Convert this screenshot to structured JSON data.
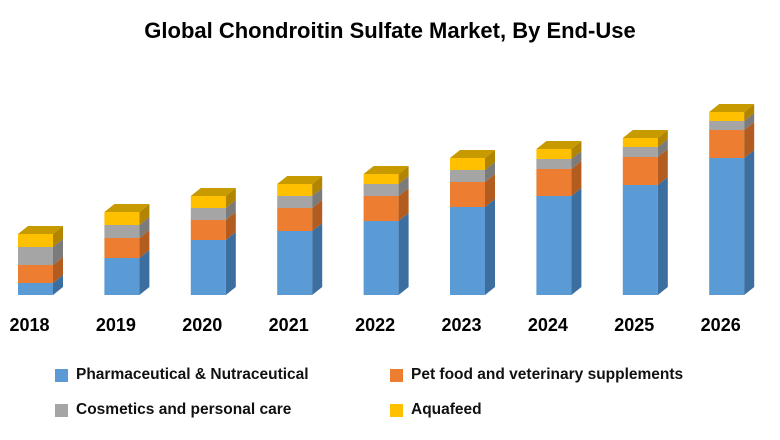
{
  "chart_data": {
    "type": "bar",
    "variant": "3d-stacked-column",
    "title": "Global Chondroitin Sulfate Market, By End-Use",
    "categories": [
      "2018",
      "2019",
      "2020",
      "2021",
      "2022",
      "2023",
      "2024",
      "2025",
      "2026"
    ],
    "series": [
      {
        "name": "Pharmaceutical & Nutraceutical",
        "color": "#5B9BD5",
        "color_dark": "#3C6E9F",
        "values": [
          12,
          37,
          55,
          64,
          74,
          88,
          99,
          110,
          137
        ]
      },
      {
        "name": "Pet food and veterinary supplements",
        "color": "#ED7D31",
        "color_dark": "#B25C1F",
        "values": [
          18,
          20,
          20,
          23,
          25,
          25,
          27,
          28,
          28
        ]
      },
      {
        "name": "Cosmetics and personal care",
        "color": "#A5A5A5",
        "color_dark": "#7B7B7B",
        "values": [
          18,
          13,
          12,
          12,
          12,
          12,
          10,
          10,
          9
        ]
      },
      {
        "name": "Aquafeed",
        "color": "#FFC000",
        "color_dark": "#B18500",
        "color_top": "#C79A00",
        "values": [
          13,
          13,
          12,
          12,
          10,
          12,
          10,
          9,
          9
        ]
      }
    ],
    "value_units": "relative height (no value axis shown)",
    "stack_order_bottom_to_top": [
      "Pharmaceutical & Nutraceutical",
      "Pet food and veterinary supplements",
      "Cosmetics and personal care",
      "Aquafeed"
    ],
    "legend_position": "bottom",
    "axes": {
      "x_label": "",
      "y_label": "",
      "y_axis_visible": false,
      "x_axis_line_visible": false,
      "gridlines": false
    },
    "text_color": "#000000",
    "background_color": "#ffffff"
  }
}
